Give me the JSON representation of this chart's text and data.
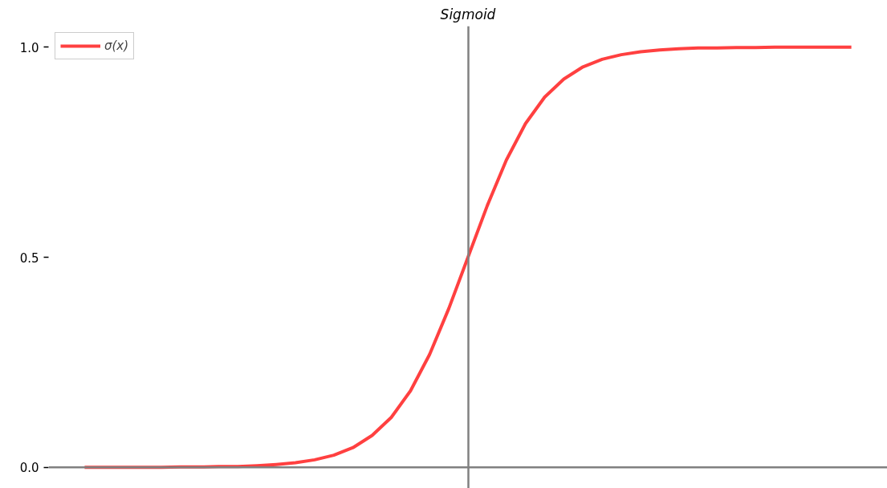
{
  "chart_data": {
    "type": "line",
    "title": "Sigmoid",
    "categories": [
      null,
      null,
      null,
      null,
      null,
      null,
      null,
      null,
      null,
      null,
      null,
      null,
      null,
      null,
      null,
      null,
      null,
      null,
      null,
      null,
      null,
      null,
      null,
      null,
      null,
      null,
      null,
      null,
      null,
      null,
      null,
      null,
      null,
      null,
      null,
      null,
      null,
      null,
      null,
      null,
      null
    ],
    "series": [
      {
        "name": "σ(x)",
        "color": "#ff4040",
        "values": [
          0.0,
          0.0,
          0.0,
          0.0,
          0.0,
          0.001,
          0.001,
          0.002,
          0.002,
          0.004,
          0.007,
          0.011,
          0.018,
          0.029,
          0.047,
          0.076,
          0.119,
          0.182,
          0.269,
          0.378,
          0.5,
          0.622,
          0.731,
          0.818,
          0.881,
          0.924,
          0.953,
          0.971,
          0.982,
          0.989,
          0.993,
          0.996,
          0.998,
          0.998,
          0.999,
          0.999,
          1.0,
          1.0,
          1.0,
          1.0,
          1.0
        ]
      }
    ],
    "ylim": [
      -0.05,
      1.05
    ],
    "yticks": [
      {
        "value": 0,
        "label": "0.0"
      },
      {
        "value": 0.5,
        "label": "0.5"
      },
      {
        "value": 1,
        "label": "1.0"
      }
    ],
    "ref_lines": [
      {
        "axis": "y",
        "value": 0,
        "color": "#808080"
      }
    ],
    "tick_labels": "y",
    "grid": false,
    "legend": "top left",
    "line_style": "solid",
    "marker": "none"
  }
}
